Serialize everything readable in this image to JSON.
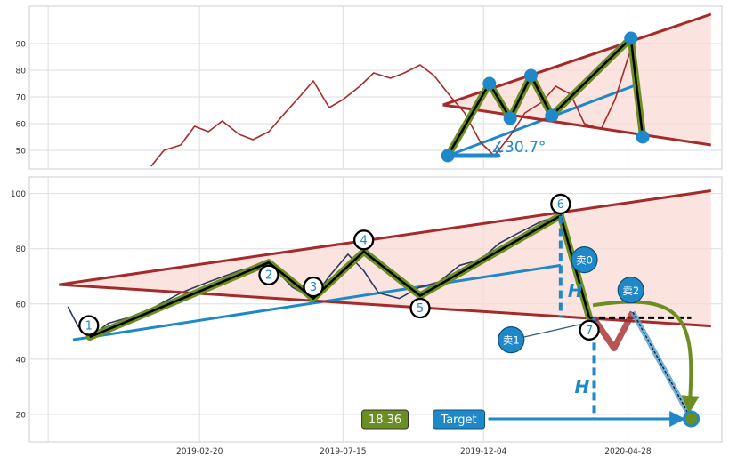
{
  "chart_data": [
    {
      "type": "line",
      "panel": "top",
      "ylim": [
        43,
        104
      ],
      "yticks": [
        50,
        60,
        70,
        80,
        90
      ],
      "grid": true,
      "annotation_angle": "∡30.7°",
      "series": [
        {
          "color": "#a52a2a",
          "x": [
            "2019-01-02",
            "2019-01-15",
            "2019-02-01",
            "2019-02-15",
            "2019-03-01",
            "2019-03-15",
            "2019-04-01",
            "2019-04-15",
            "2019-05-01",
            "2019-05-15",
            "2019-06-01",
            "2019-06-15",
            "2019-07-01",
            "2019-07-15",
            "2019-08-01",
            "2019-08-15",
            "2019-09-01",
            "2019-09-15",
            "2019-10-01",
            "2019-10-15",
            "2019-11-01",
            "2019-11-15",
            "2019-12-01",
            "2019-12-15",
            "2020-01-01",
            "2020-01-15",
            "2020-02-01",
            "2020-02-15",
            "2020-03-01",
            "2020-03-15",
            "2020-04-01",
            "2020-04-15",
            "2020-05-01",
            "2020-05-15"
          ],
          "values": [
            44,
            50,
            52,
            59,
            57,
            61,
            56,
            54,
            57,
            63,
            70,
            76,
            66,
            69,
            74,
            79,
            77,
            79,
            82,
            78,
            70,
            64,
            53,
            48,
            56,
            64,
            68,
            74,
            71,
            60,
            58,
            69,
            88,
            55
          ]
        }
      ],
      "pattern_points": [
        {
          "date": "2019-10-29",
          "value": 48
        },
        {
          "date": "2019-12-10",
          "value": 75
        },
        {
          "date": "2019-12-31",
          "value": 62
        },
        {
          "date": "2020-01-21",
          "value": 78
        },
        {
          "date": "2020-02-11",
          "value": 63
        },
        {
          "date": "2020-05-01",
          "value": 92
        },
        {
          "date": "2020-05-13",
          "value": 55
        }
      ],
      "trend_upper": [
        {
          "date": "2019-10-24",
          "value": 67
        },
        {
          "date": "2020-07-21",
          "value": 101
        }
      ],
      "trend_lower": [
        {
          "date": "2019-10-24",
          "value": 67
        },
        {
          "date": "2020-07-21",
          "value": 52
        }
      ],
      "blue_trend": [
        {
          "date": "2019-10-29",
          "value": 48
        },
        {
          "date": "2020-05-10",
          "value": 75
        }
      ],
      "blue_base": [
        {
          "date": "2019-10-29",
          "value": 48
        },
        {
          "date": "2019-12-19",
          "value": 48
        }
      ]
    },
    {
      "type": "line",
      "panel": "bottom",
      "ylim": [
        10,
        106
      ],
      "yticks": [
        20,
        40,
        60,
        80,
        100
      ],
      "xticks": [
        "2019-02-20",
        "2019-07-15",
        "2019-12-04",
        "2020-04-28"
      ],
      "grid": true,
      "series": [
        {
          "color": "#2e3a5c",
          "x": [
            "2018-10-10",
            "2018-10-20",
            "2018-11-01",
            "2018-11-20",
            "2018-12-10",
            "2019-01-01",
            "2019-02-01",
            "2019-03-01",
            "2019-04-01",
            "2019-05-01",
            "2019-05-25",
            "2019-06-15",
            "2019-07-01",
            "2019-07-20",
            "2019-08-05",
            "2019-08-20",
            "2019-09-10",
            "2019-09-30",
            "2019-10-20",
            "2019-11-10",
            "2019-12-01",
            "2019-12-20",
            "2020-01-10",
            "2020-02-01",
            "2020-02-20",
            "2020-03-05",
            "2020-03-15",
            "2020-03-24"
          ],
          "values": [
            59,
            52,
            48,
            53,
            55,
            58,
            64,
            68,
            72,
            75,
            66,
            62,
            70,
            78,
            72,
            64,
            62,
            66,
            68,
            74,
            76,
            82,
            86,
            90,
            92,
            75,
            58,
            53
          ]
        }
      ],
      "pattern_points": [
        {
          "label": "1",
          "date": "2018-11-01",
          "value": 48
        },
        {
          "label": "2",
          "date": "2019-05-01",
          "value": 75
        },
        {
          "label": "3",
          "date": "2019-06-15",
          "value": 62
        },
        {
          "label": "4",
          "date": "2019-08-05",
          "value": 79
        },
        {
          "label": "5",
          "date": "2019-10-01",
          "value": 63
        },
        {
          "label": "6",
          "date": "2020-02-20",
          "value": 92
        },
        {
          "label": "7",
          "date": "2020-03-20",
          "value": 55
        }
      ],
      "trend_upper": [
        {
          "date": "2018-10-01",
          "value": 67
        },
        {
          "date": "2020-07-21",
          "value": 101
        }
      ],
      "trend_lower": [
        {
          "date": "2018-10-01",
          "value": 67
        },
        {
          "date": "2020-07-21",
          "value": 52
        }
      ],
      "blue_trend": [
        {
          "date": "2018-10-15",
          "value": 47
        },
        {
          "date": "2020-02-20",
          "value": 74
        }
      ],
      "h_target_line": [
        {
          "date": "2020-03-20",
          "value": 55
        },
        {
          "date": "2020-07-01",
          "value": 55
        }
      ],
      "sell_path": [
        {
          "date": "2020-03-24",
          "value": 55
        },
        {
          "date": "2020-04-14",
          "value": 44
        },
        {
          "date": "2020-05-03",
          "value": 57
        },
        {
          "date": "2020-07-01",
          "value": 18.36
        }
      ],
      "target": {
        "date": "2020-07-01",
        "value": 18.36
      },
      "target_value": "18.36",
      "target_label": "Target",
      "h_label": "H",
      "sell_labels": [
        {
          "text": "卖0",
          "date": "2020-03-15",
          "value": 76
        },
        {
          "text": "卖1",
          "date": "2020-01-01",
          "value": 47
        },
        {
          "text": "卖2",
          "date": "2020-05-01",
          "value": 65
        }
      ]
    }
  ]
}
